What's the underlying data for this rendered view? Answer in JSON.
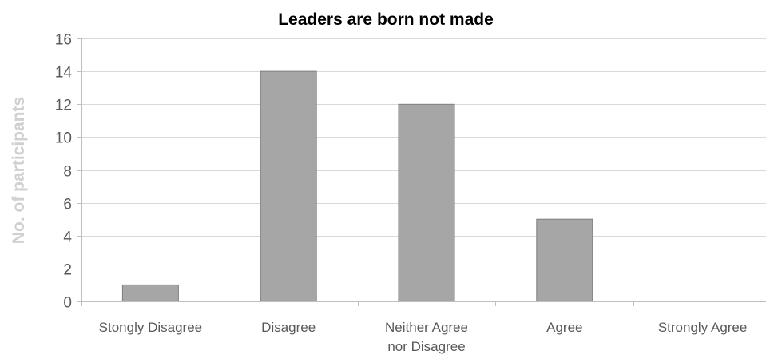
{
  "chart_data": {
    "type": "bar",
    "title": "Leaders are born not made",
    "xlabel": "",
    "ylabel": "No. of participants",
    "categories": [
      [
        "Stongly Disagree"
      ],
      [
        "Disagree"
      ],
      [
        "Neither Agree",
        "nor Disagree"
      ],
      [
        "Agree"
      ],
      [
        "Strongly Agree"
      ]
    ],
    "values": [
      1,
      14,
      12,
      5,
      0
    ],
    "ylim": [
      0,
      16
    ],
    "yticks": [
      0,
      2,
      4,
      6,
      8,
      10,
      12,
      14,
      16
    ],
    "grid": true,
    "legend": "none",
    "colors": {
      "bar_fill": "#a6a6a6",
      "bar_stroke": "#7f7f7f",
      "grid": "#d9d9d9",
      "axis": "#bfbfbf"
    }
  }
}
